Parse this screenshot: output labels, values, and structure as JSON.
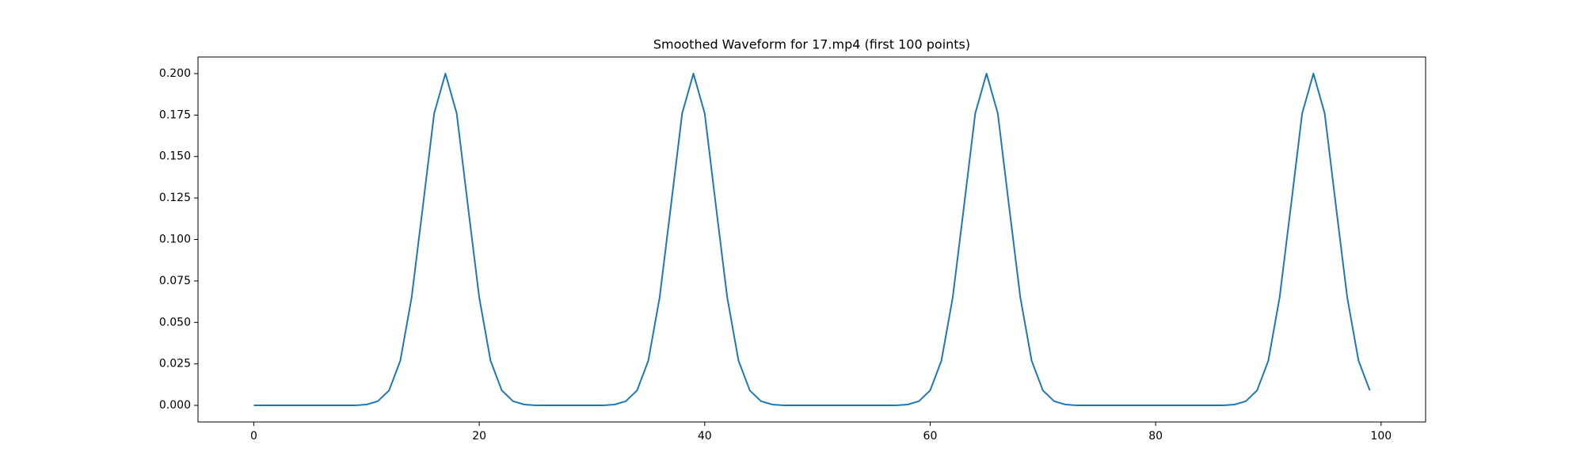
{
  "chart_data": {
    "type": "line",
    "title": "Smoothed Waveform for 17.mp4 (first 100 points)",
    "x": [
      0,
      1,
      2,
      3,
      4,
      5,
      6,
      7,
      8,
      9,
      10,
      11,
      12,
      13,
      14,
      15,
      16,
      17,
      18,
      19,
      20,
      21,
      22,
      23,
      24,
      25,
      26,
      27,
      28,
      29,
      30,
      31,
      32,
      33,
      34,
      35,
      36,
      37,
      38,
      39,
      40,
      41,
      42,
      43,
      44,
      45,
      46,
      47,
      48,
      49,
      50,
      51,
      52,
      53,
      54,
      55,
      56,
      57,
      58,
      59,
      60,
      61,
      62,
      63,
      64,
      65,
      66,
      67,
      68,
      69,
      70,
      71,
      72,
      73,
      74,
      75,
      76,
      77,
      78,
      79,
      80,
      81,
      82,
      83,
      84,
      85,
      86,
      87,
      88,
      89,
      90,
      91,
      92,
      93,
      94,
      95,
      96,
      97,
      98,
      99
    ],
    "series": [
      {
        "color": "#1f77b4",
        "values": [
          0,
          0,
          0,
          0,
          0,
          0,
          0,
          0,
          0,
          0,
          0.0005,
          0.0025,
          0.009,
          0.027,
          0.065,
          0.12,
          0.176,
          0.2,
          0.176,
          0.12,
          0.065,
          0.027,
          0.009,
          0.0025,
          0.0005,
          0,
          0,
          0,
          0,
          0,
          0,
          0,
          0.0005,
          0.0025,
          0.009,
          0.027,
          0.065,
          0.12,
          0.176,
          0.2,
          0.176,
          0.12,
          0.065,
          0.027,
          0.009,
          0.0025,
          0.0005,
          0,
          0,
          0,
          0,
          0,
          0,
          0,
          0,
          0,
          0,
          0,
          0.0005,
          0.0025,
          0.009,
          0.027,
          0.065,
          0.12,
          0.176,
          0.2,
          0.176,
          0.12,
          0.065,
          0.027,
          0.009,
          0.0025,
          0.0005,
          0,
          0,
          0,
          0,
          0,
          0,
          0,
          0,
          0,
          0,
          0,
          0,
          0,
          0,
          0.0005,
          0.0025,
          0.009,
          0.027,
          0.065,
          0.12,
          0.176,
          0.2,
          0.176,
          0.12,
          0.065,
          0.027,
          0.009
        ]
      }
    ],
    "xlim": [
      -4.95,
      103.95
    ],
    "xticks": [
      0,
      20,
      40,
      60,
      80,
      100
    ],
    "ylim": [
      -0.01,
      0.21
    ],
    "yticks": [
      {
        "value": 0,
        "label": "0.000"
      },
      {
        "value": 0.025,
        "label": "0.025"
      },
      {
        "value": 0.05,
        "label": "0.050"
      },
      {
        "value": 0.075,
        "label": "0.075"
      },
      {
        "value": 0.1,
        "label": "0.100"
      },
      {
        "value": 0.125,
        "label": "0.125"
      },
      {
        "value": 0.15,
        "label": "0.150"
      },
      {
        "value": 0.175,
        "label": "0.175"
      },
      {
        "value": 0.2,
        "label": "0.200"
      }
    ]
  }
}
